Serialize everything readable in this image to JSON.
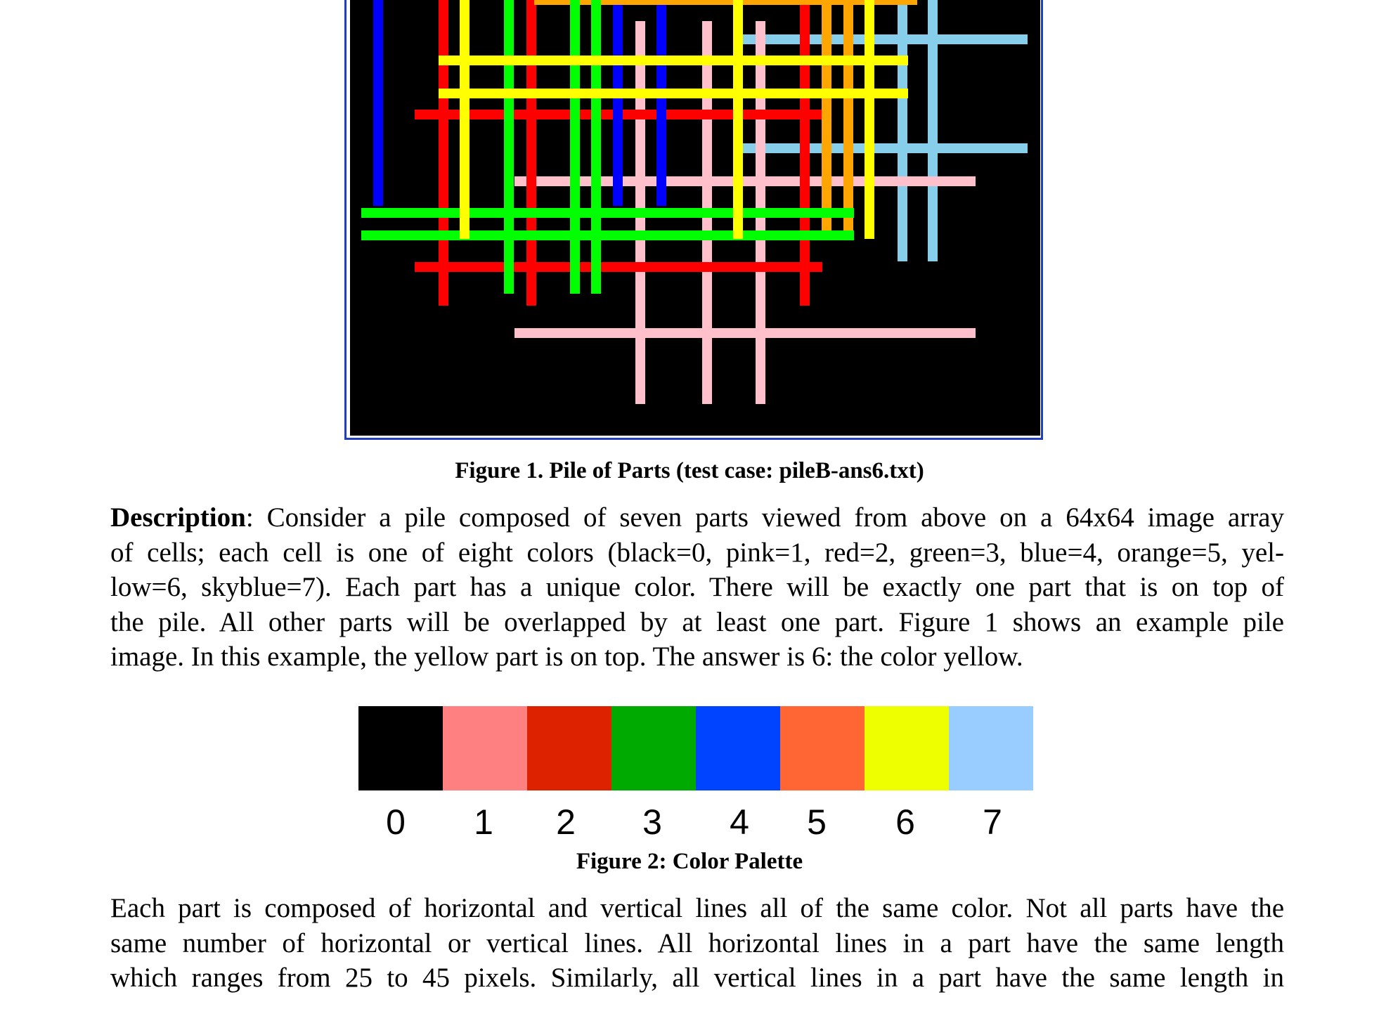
{
  "figure1": {
    "caption": "Figure 1. Pile of Parts (test case: pileB-ans6.txt)",
    "parts": [
      {
        "color_name": "skyblue",
        "color": "#87ceeb"
      },
      {
        "color_name": "pink",
        "color": "#ffc0cb"
      },
      {
        "color_name": "red",
        "color": "#ff0000"
      },
      {
        "color_name": "blue",
        "color": "#0000ff"
      },
      {
        "color_name": "orange",
        "color": "#ffa500"
      },
      {
        "color_name": "green",
        "color": "#00ff00"
      },
      {
        "color_name": "yellow",
        "color": "#ffff00"
      }
    ]
  },
  "description": {
    "lines": [
      {
        "bold": "Description",
        "text": ": Consider a pile composed of seven parts viewed from above on a 64x64 image array"
      },
      {
        "text": "of cells; each cell is one of eight colors (black=0, pink=1, red=2, green=3, blue=4, orange=5, yel-"
      },
      {
        "text": "low=6, skyblue=7).  Each part has a unique color.  There will be exactly one part that is on top of"
      },
      {
        "text": "the pile.  All other parts will be overlapped by at least one part.  Figure 1 shows an example pile"
      },
      {
        "text": "image.  In this example, the yellow part is on top.  The answer is 6: the color yellow."
      }
    ]
  },
  "figure2": {
    "caption": "Figure 2: Color Palette",
    "swatches": [
      {
        "label": "0",
        "color": "#000000"
      },
      {
        "label": "1",
        "color": "#ff8080"
      },
      {
        "label": "2",
        "color": "#dd2200"
      },
      {
        "label": "3",
        "color": "#00aa00"
      },
      {
        "label": "4",
        "color": "#0044ff"
      },
      {
        "label": "5",
        "color": "#ff6633"
      },
      {
        "label": "6",
        "color": "#eeff00"
      },
      {
        "label": "7",
        "color": "#99ccff"
      }
    ]
  },
  "paragraph2": {
    "lines": [
      "Each part is composed of horizontal and vertical lines all of the same color.  Not all parts have the",
      "same number of horizontal or vertical lines. All horizontal lines in a part have the same length",
      "which ranges from 25 to 45 pixels.  Similarly, all vertical lines in a part have the same length in"
    ]
  }
}
